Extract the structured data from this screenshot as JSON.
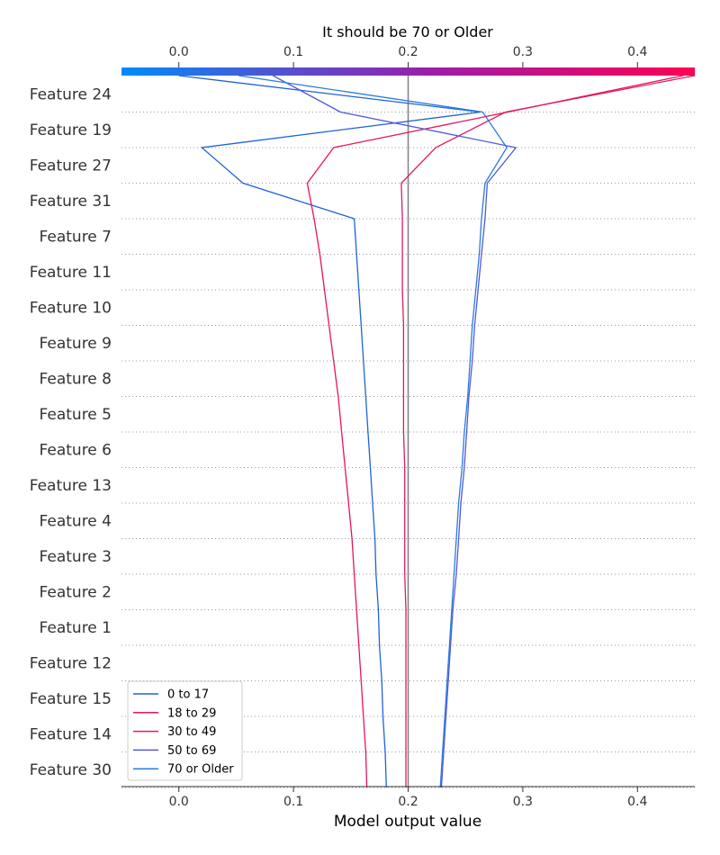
{
  "chart_data": {
    "type": "line",
    "title": "It should be 70 or Older",
    "xlabel": "Model output value",
    "ylabel": "",
    "xlim": [
      -0.05,
      0.45
    ],
    "xticks": [
      "0.0",
      "0.1",
      "0.2",
      "0.3",
      "0.4"
    ],
    "xtick_values": [
      0.0,
      0.1,
      0.2,
      0.3,
      0.4
    ],
    "base_value": 0.2,
    "colorbar": {
      "low_color": "#008bfb",
      "mid_color": "#a01ba8",
      "high_color": "#ff0052"
    },
    "features": [
      "Feature 24",
      "Feature 19",
      "Feature 27",
      "Feature 31",
      "Feature 7",
      "Feature 11",
      "Feature 10",
      "Feature 9",
      "Feature 8",
      "Feature 5",
      "Feature 6",
      "Feature 13",
      "Feature 4",
      "Feature 3",
      "Feature 2",
      "Feature 1",
      "Feature 12",
      "Feature 15",
      "Feature 14",
      "Feature 30"
    ],
    "series": [
      {
        "name": "0 to 17",
        "color": "#1e63d6",
        "values": [
          0.0,
          0.263,
          0.02,
          0.056,
          0.153,
          0.155,
          0.157,
          0.159,
          0.161,
          0.163,
          0.165,
          0.167,
          0.169,
          0.171,
          0.172,
          0.174,
          0.175,
          0.177,
          0.178,
          0.18,
          0.181
        ]
      },
      {
        "name": "18 to 29",
        "color": "#e8135a",
        "values": [
          0.44,
          0.287,
          0.135,
          0.112,
          0.118,
          0.123,
          0.127,
          0.131,
          0.135,
          0.139,
          0.142,
          0.145,
          0.148,
          0.151,
          0.153,
          0.155,
          0.157,
          0.159,
          0.161,
          0.163,
          0.164
        ]
      },
      {
        "name": "30 to 49",
        "color": "#e0196a",
        "values": [
          0.45,
          0.285,
          0.224,
          0.194,
          0.195,
          0.195,
          0.195,
          0.196,
          0.196,
          0.196,
          0.196,
          0.197,
          0.197,
          0.197,
          0.197,
          0.198,
          0.198,
          0.198,
          0.198,
          0.198,
          0.198
        ]
      },
      {
        "name": "50 to 69",
        "color": "#5158d9",
        "values": [
          0.082,
          0.141,
          0.294,
          0.269,
          0.267,
          0.264,
          0.261,
          0.258,
          0.256,
          0.253,
          0.251,
          0.249,
          0.246,
          0.244,
          0.242,
          0.239,
          0.237,
          0.235,
          0.233,
          0.231,
          0.229
        ]
      },
      {
        "name": "70 or Older",
        "color": "#2a7be0",
        "values": [
          0.052,
          0.265,
          0.286,
          0.267,
          0.264,
          0.262,
          0.259,
          0.256,
          0.254,
          0.252,
          0.249,
          0.247,
          0.244,
          0.242,
          0.24,
          0.238,
          0.236,
          0.234,
          0.232,
          0.23,
          0.228
        ]
      }
    ],
    "legend_position": "bottom-left",
    "grid": "dotted horizontal"
  }
}
